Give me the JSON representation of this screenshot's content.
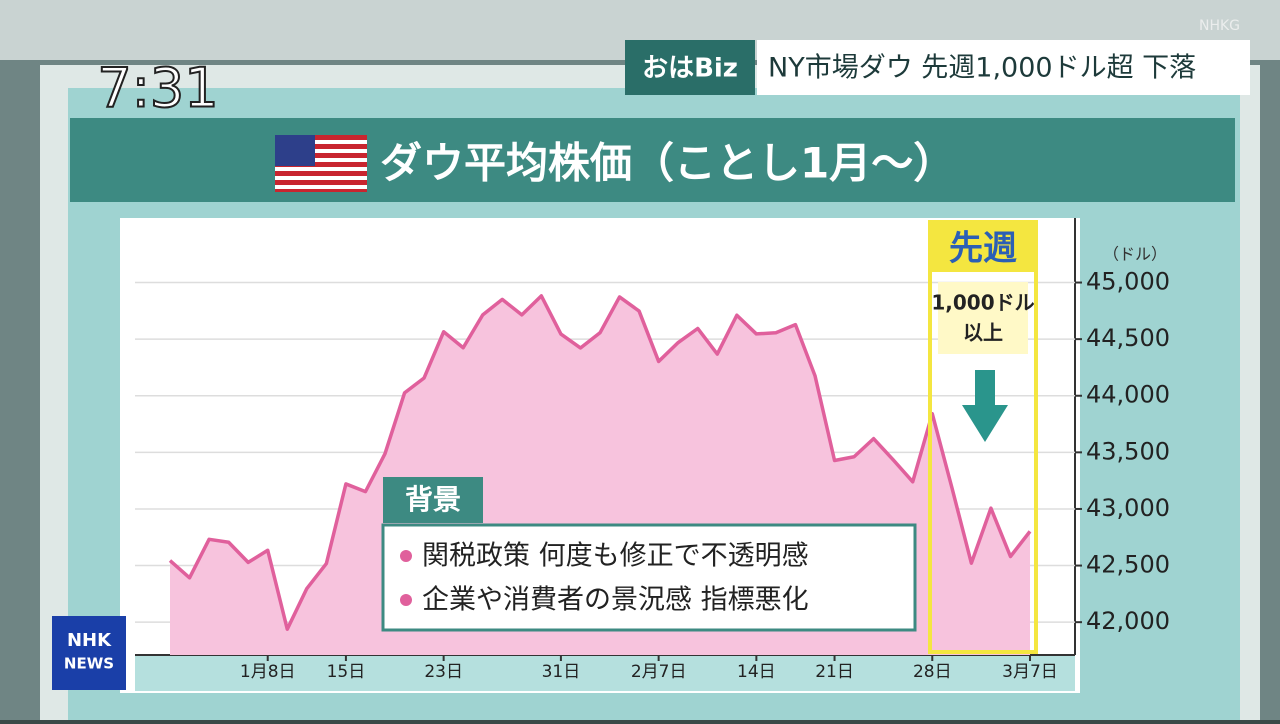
{
  "broadcast": {
    "clock": "7:31",
    "program": "おはBiz",
    "headline": "NY市場ダウ 先週1,000ドル超 下落",
    "watermark": "NHKG",
    "news_logo": [
      "NHK",
      "NEWS"
    ]
  },
  "chart_data": {
    "type": "area",
    "title": "ダウ平均株価（ことし1月〜）",
    "y_unit": "（ドル）",
    "categories": [
      null,
      null,
      null,
      null,
      null,
      "1月8日",
      null,
      null,
      null,
      "15日",
      null,
      null,
      null,
      null,
      "23日",
      null,
      null,
      null,
      null,
      null,
      "31日",
      null,
      null,
      null,
      null,
      "2月7日",
      null,
      null,
      null,
      null,
      "14日",
      null,
      null,
      null,
      "21日",
      null,
      null,
      null,
      null,
      "28日",
      null,
      null,
      null,
      null,
      "3月7日"
    ],
    "values": [
      42544,
      42392,
      42732,
      42706,
      42528,
      42635,
      41938,
      42297,
      42518,
      43221,
      43153,
      43488,
      44025,
      44157,
      44565,
      44424,
      44714,
      44851,
      44714,
      44882,
      44545,
      44422,
      44556,
      44873,
      44748,
      44303,
      44470,
      44594,
      44368,
      44711,
      44546,
      44556,
      44628,
      44177,
      43428,
      43461,
      43621,
      43434,
      43240,
      43841,
      43191,
      42521,
      43007,
      42580,
      42802
    ],
    "color": "#e0609c",
    "fill": "#f7c3dd",
    "ylim": [
      41710,
      45570
    ],
    "yticks": [
      {
        "value": 42000,
        "label": "42,000"
      },
      {
        "value": 42500,
        "label": "42,500"
      },
      {
        "value": 43000,
        "label": "43,000"
      },
      {
        "value": 43500,
        "label": "43,500"
      },
      {
        "value": 44000,
        "label": "44,000"
      },
      {
        "value": 44500,
        "label": "44,500"
      },
      {
        "value": 45000,
        "label": "45,000"
      }
    ],
    "grid": true,
    "annotations": {
      "highlight_label": "先週",
      "highlight_note": [
        "1,000ドル",
        "以上"
      ]
    }
  },
  "background_box": {
    "title": "背景",
    "items": [
      "関税政策 何度も修正で不透明感",
      "企業や消費者の景況感 指標悪化"
    ]
  }
}
